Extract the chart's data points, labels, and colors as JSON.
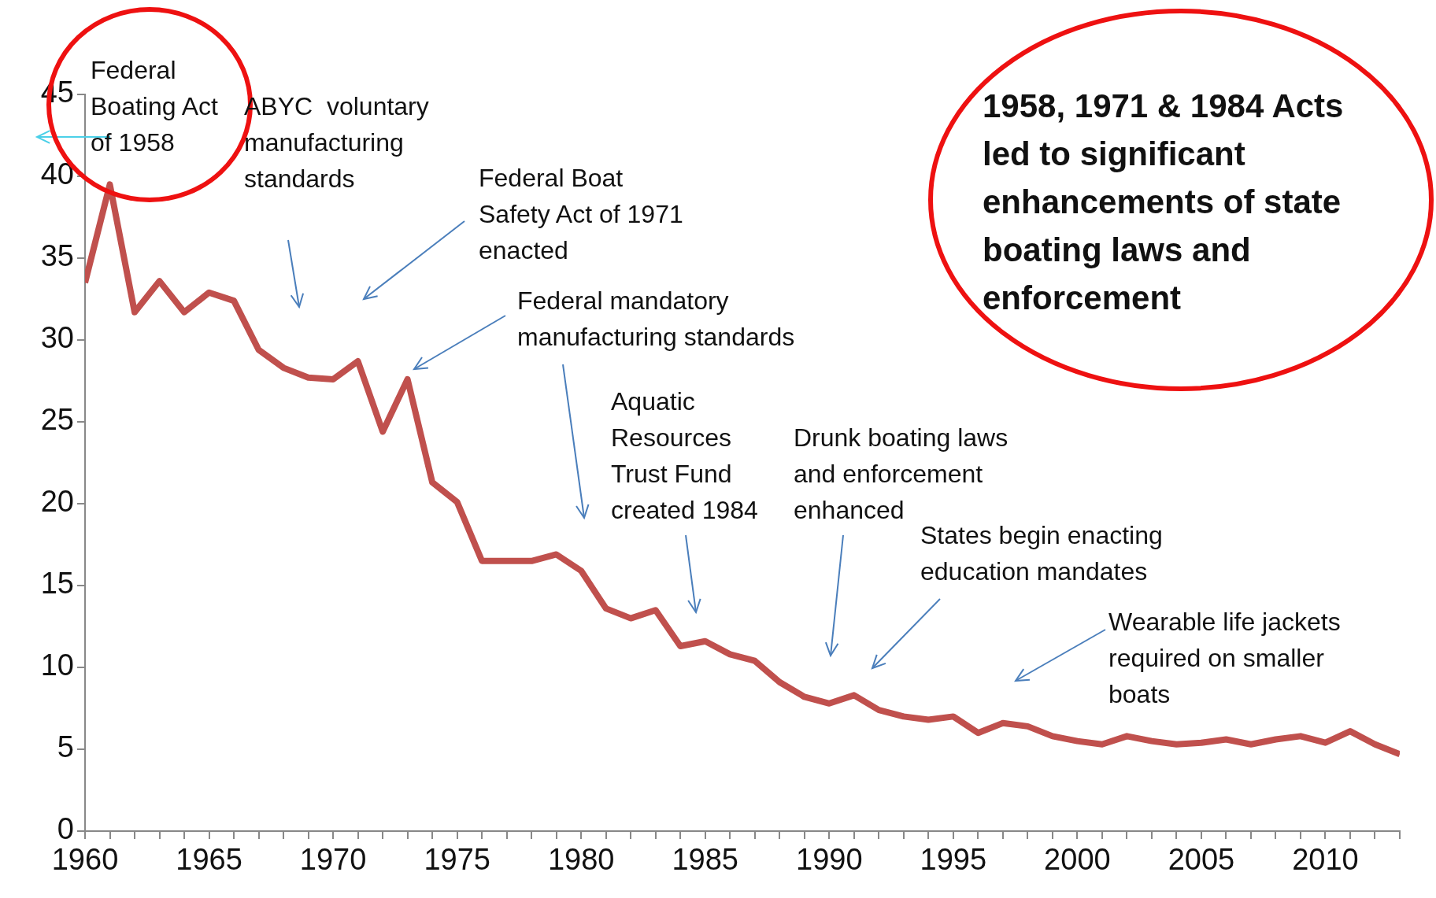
{
  "chart_data": {
    "type": "line",
    "x": [
      1960,
      1961,
      1962,
      1963,
      1964,
      1965,
      1966,
      1967,
      1968,
      1969,
      1970,
      1971,
      1972,
      1973,
      1974,
      1975,
      1976,
      1977,
      1978,
      1979,
      1980,
      1981,
      1982,
      1983,
      1984,
      1985,
      1986,
      1987,
      1988,
      1989,
      1990,
      1991,
      1992,
      1993,
      1994,
      1995,
      1996,
      1997,
      1998,
      1999,
      2000,
      2001,
      2002,
      2003,
      2004,
      2005,
      2006,
      2007,
      2008,
      2009,
      2010,
      2011,
      2012,
      2013
    ],
    "series": [
      {
        "color": "#c0504d",
        "values": [
          33.5,
          39.5,
          31.7,
          33.6,
          31.7,
          32.9,
          32.4,
          29.4,
          28.3,
          27.7,
          27.6,
          28.7,
          24.4,
          27.6,
          21.3,
          20.1,
          16.5,
          16.5,
          16.5,
          16.9,
          15.9,
          13.6,
          13.0,
          13.5,
          11.3,
          11.6,
          10.8,
          10.4,
          9.1,
          8.2,
          7.8,
          8.3,
          7.4,
          7.0,
          6.8,
          7.0,
          6.0,
          6.6,
          6.4,
          5.8,
          5.5,
          5.3,
          5.8,
          5.5,
          5.3,
          5.4,
          5.6,
          5.3,
          5.6,
          5.8,
          5.4,
          6.1,
          5.3,
          4.7
        ]
      }
    ],
    "xlim": [
      1960,
      2013
    ],
    "xticks": [
      1960,
      {
        "value": 1961,
        "label": null
      },
      {
        "value": 1962,
        "label": null
      },
      {
        "value": 1963,
        "label": null
      },
      {
        "value": 1964,
        "label": null
      },
      1965,
      {
        "value": 1966,
        "label": null
      },
      {
        "value": 1967,
        "label": null
      },
      {
        "value": 1968,
        "label": null
      },
      {
        "value": 1969,
        "label": null
      },
      1970,
      {
        "value": 1971,
        "label": null
      },
      {
        "value": 1972,
        "label": null
      },
      {
        "value": 1973,
        "label": null
      },
      {
        "value": 1974,
        "label": null
      },
      1975,
      {
        "value": 1976,
        "label": null
      },
      {
        "value": 1977,
        "label": null
      },
      {
        "value": 1978,
        "label": null
      },
      {
        "value": 1979,
        "label": null
      },
      1980,
      {
        "value": 1981,
        "label": null
      },
      {
        "value": 1982,
        "label": null
      },
      {
        "value": 1983,
        "label": null
      },
      {
        "value": 1984,
        "label": null
      },
      1985,
      {
        "value": 1986,
        "label": null
      },
      {
        "value": 1987,
        "label": null
      },
      {
        "value": 1988,
        "label": null
      },
      {
        "value": 1989,
        "label": null
      },
      1990,
      {
        "value": 1991,
        "label": null
      },
      {
        "value": 1992,
        "label": null
      },
      {
        "value": 1993,
        "label": null
      },
      {
        "value": 1994,
        "label": null
      },
      1995,
      {
        "value": 1996,
        "label": null
      },
      {
        "value": 1997,
        "label": null
      },
      {
        "value": 1998,
        "label": null
      },
      {
        "value": 1999,
        "label": null
      },
      2000,
      {
        "value": 2001,
        "label": null
      },
      {
        "value": 2002,
        "label": null
      },
      {
        "value": 2003,
        "label": null
      },
      {
        "value": 2004,
        "label": null
      },
      2005,
      {
        "value": 2006,
        "label": null
      },
      {
        "value": 2007,
        "label": null
      },
      {
        "value": 2008,
        "label": null
      },
      {
        "value": 2009,
        "label": null
      },
      2010,
      {
        "value": 2011,
        "label": null
      },
      {
        "value": 2012,
        "label": null
      },
      {
        "value": 2013,
        "label": null
      }
    ],
    "ylim": [
      0,
      45
    ],
    "yticks": [
      0,
      5,
      10,
      15,
      20,
      25,
      30,
      35,
      40,
      45
    ],
    "grid": false,
    "legend": false,
    "marker": "none",
    "line_style": "solid",
    "annotations": [
      "Federal\nBoating Act\nof 1958",
      "ABYC  voluntary\nmanufacturing\nstandards",
      "Federal Boat\nSafety Act of 1971\nenacted",
      "Federal mandatory\nmanufacturing standards",
      "Aquatic\nResources\nTrust Fund\ncreated 1984",
      "Drunk boating laws\nand enforcement\nenhanced",
      "States begin enacting\neducation mandates",
      "Wearable life jackets\nrequired on smaller\nboats",
      "1958, 1971 & 1984 Acts\nled to significant\nenhancements of state\nboating laws and\nenforcement"
    ]
  }
}
